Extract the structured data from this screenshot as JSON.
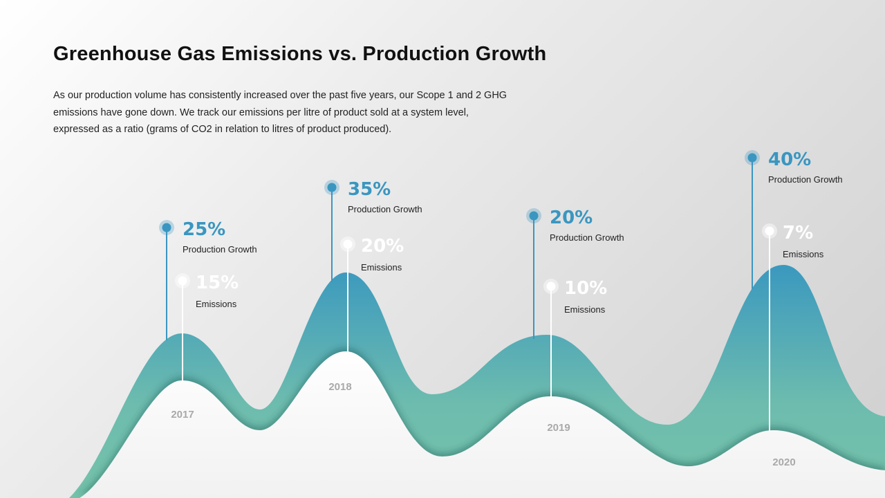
{
  "title": "Greenhouse Gas Emissions vs. Production Growth",
  "description": "As our production volume has consistently increased over the past five years, our Scope 1 and 2 GHG emissions have gone down. We track our emissions per litre of product sold at a system level, expressed as a ratio (grams of CO2 in relation to litres of product produced).",
  "chart_data": {
    "type": "area",
    "categories": [
      "2017",
      "2018",
      "2019",
      "2020"
    ],
    "series": [
      {
        "name": "Production Growth",
        "values": [
          25,
          35,
          20,
          40
        ],
        "unit": "%",
        "color": "#3a96c0"
      },
      {
        "name": "Emissions",
        "values": [
          15,
          20,
          10,
          7
        ],
        "unit": "%",
        "color": "#ffffff"
      }
    ],
    "value_labels": {
      "production": [
        "25%",
        "35%",
        "20%",
        "40%"
      ],
      "emissions": [
        "15%",
        "20%",
        "10%",
        "7%"
      ]
    },
    "series_labels": {
      "production": "Production Growth",
      "emissions": "Emissions"
    },
    "colors": {
      "area_top": "#3a98bf",
      "area_bottom": "#74c2aa",
      "marker_prod": "#3a96c0",
      "marker_emis": "#ffffff"
    },
    "legend": "none",
    "grid": false
  }
}
